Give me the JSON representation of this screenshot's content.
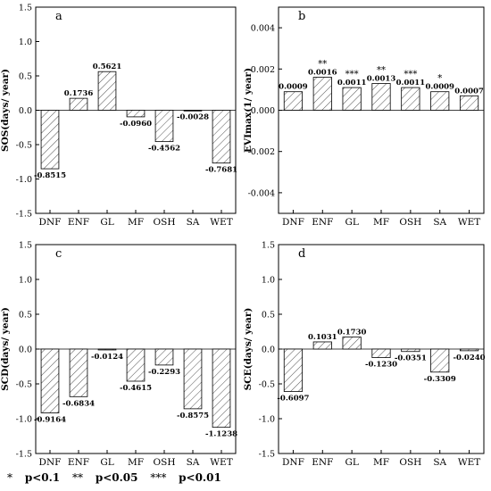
{
  "chart_data": [
    {
      "type": "bar",
      "panel_label": "a",
      "ylabel": "SOS(days/ year)",
      "categories": [
        "DNF",
        "ENF",
        "GL",
        "MF",
        "OSH",
        "SA",
        "WET"
      ],
      "values": [
        -0.8515,
        0.1736,
        0.5621,
        -0.096,
        -0.4562,
        -0.0028,
        -0.7681
      ],
      "value_labels": [
        "-0.8515",
        "0.1736",
        "0.5621",
        "-0.0960",
        "-0.4562",
        "-0.0028",
        "-0.7681"
      ],
      "significance": [
        "",
        "",
        "",
        "",
        "",
        "",
        ""
      ],
      "ylim": [
        -1.5,
        1.5
      ],
      "yticks": [
        -1.5,
        -1.0,
        -0.5,
        0.0,
        0.5,
        1.0,
        1.5
      ],
      "ytick_labels": [
        "-1.5",
        "-1.0",
        "-0.5",
        "0.0",
        "0.5",
        "1.0",
        "1.5"
      ],
      "grid": false
    },
    {
      "type": "bar",
      "panel_label": "b",
      "ylabel": "EVImax(1/ year)",
      "categories": [
        "DNF",
        "ENF",
        "GL",
        "MF",
        "OSH",
        "SA",
        "WET"
      ],
      "values": [
        0.0009,
        0.0016,
        0.0011,
        0.0013,
        0.0011,
        0.0009,
        0.0007
      ],
      "value_labels": [
        "0.0009",
        "0.0016",
        "0.0011",
        "0.0013",
        "0.0011",
        "0.0009",
        "0.0007"
      ],
      "significance": [
        "",
        "**",
        "***",
        "**",
        "***",
        "*",
        ""
      ],
      "ylim": [
        -0.005,
        0.005
      ],
      "yticks": [
        -0.004,
        -0.002,
        0.0,
        0.002,
        0.004
      ],
      "ytick_labels": [
        "-0.004",
        "-0.002",
        "0.000",
        "0.002",
        "0.004"
      ],
      "grid": false
    },
    {
      "type": "bar",
      "panel_label": "c",
      "ylabel": "SCD(days/ year)",
      "categories": [
        "DNF",
        "ENF",
        "GL",
        "MF",
        "OSH",
        "SA",
        "WET"
      ],
      "values": [
        -0.9164,
        -0.6834,
        -0.0124,
        -0.4615,
        -0.2293,
        -0.8575,
        -1.1238
      ],
      "value_labels": [
        "-0.9164",
        "-0.6834",
        "-0.0124",
        "-0.4615",
        "-0.2293",
        "-0.8575",
        "-1.1238"
      ],
      "significance": [
        "",
        "",
        "",
        "",
        "",
        "",
        ""
      ],
      "ylim": [
        -1.5,
        1.5
      ],
      "yticks": [
        -1.5,
        -1.0,
        -0.5,
        0.0,
        0.5,
        1.0,
        1.5
      ],
      "ytick_labels": [
        "-1.5",
        "-1.0",
        "-0.5",
        "0.0",
        "0.5",
        "1.0",
        "1.5"
      ],
      "grid": false
    },
    {
      "type": "bar",
      "panel_label": "d",
      "ylabel": "SCE(days/ year)",
      "categories": [
        "DNF",
        "ENF",
        "GL",
        "MF",
        "OSH",
        "SA",
        "WET"
      ],
      "values": [
        -0.6097,
        0.1031,
        0.173,
        -0.123,
        -0.0351,
        -0.3309,
        -0.024
      ],
      "value_labels": [
        "-0.6097",
        "0.1031",
        "0.1730",
        "-0.1230",
        "-0.0351",
        "-0.3309",
        "-0.0240"
      ],
      "significance": [
        "",
        "",
        "",
        "",
        "",
        "",
        ""
      ],
      "ylim": [
        -1.5,
        1.5
      ],
      "yticks": [
        -1.5,
        -1.0,
        -0.5,
        0.0,
        0.5,
        1.0,
        1.5
      ],
      "ytick_labels": [
        "-1.5",
        "-1.0",
        "-0.5",
        "0.0",
        "0.5",
        "1.0",
        "1.5"
      ],
      "grid": false
    }
  ],
  "legend": [
    {
      "symbol": "*",
      "text": "p<0.1"
    },
    {
      "symbol": "**",
      "text": "p<0.05"
    },
    {
      "symbol": "***",
      "text": "p<0.01"
    }
  ],
  "colors": {
    "bar_fill": "#ffffff",
    "hatch": "#555555",
    "axis": "#000000"
  }
}
